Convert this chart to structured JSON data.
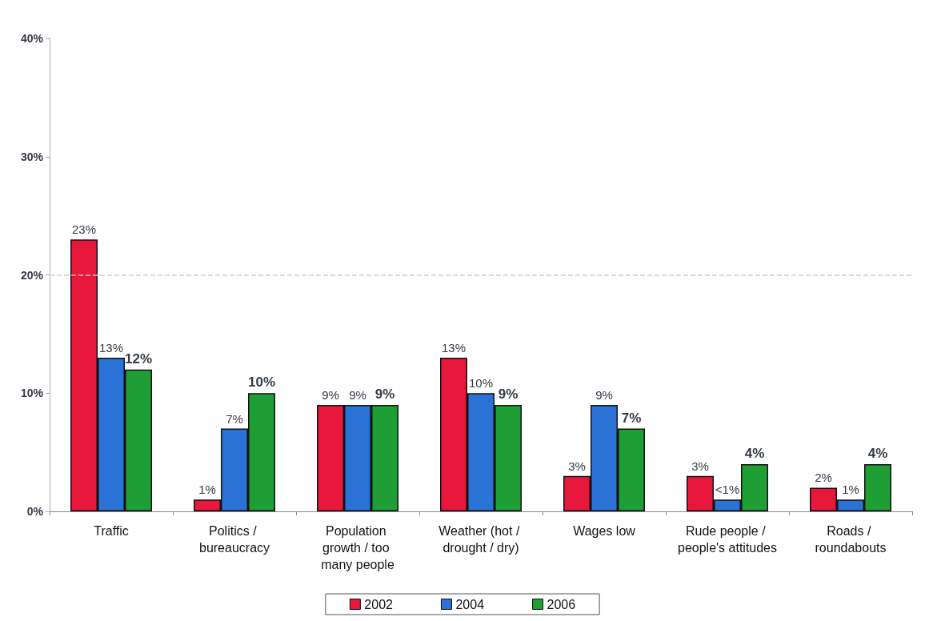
{
  "chart_data": {
    "type": "bar",
    "categories": [
      "Traffic",
      "Politics / bureaucracy",
      "Population growth / too many people",
      "Weather (hot / drought / dry)",
      "Wages low",
      "Rude people / people's attitudes",
      "Roads / roundabouts"
    ],
    "series": [
      {
        "name": "2002",
        "color": "#e8173c",
        "values": [
          23,
          1,
          9,
          13,
          3,
          3,
          2
        ],
        "value_labels": [
          "23%",
          "1%",
          "9%",
          "13%",
          "3%",
          "3%",
          "2%"
        ]
      },
      {
        "name": "2004",
        "color": "#2a72d6",
        "values": [
          13,
          7,
          9,
          10,
          9,
          1,
          1
        ],
        "value_labels": [
          "13%",
          "7%",
          "9%",
          "10%",
          "9%",
          "<1%",
          "1%"
        ]
      },
      {
        "name": "2006",
        "color": "#1f9e35",
        "values": [
          12,
          10,
          9,
          9,
          7,
          4,
          4
        ],
        "value_labels": [
          "12%",
          "10%",
          "9%",
          "9%",
          "7%",
          "4%",
          "4%"
        ]
      }
    ],
    "ylim": [
      0,
      40
    ],
    "yticks": [
      {
        "value": 0,
        "label": "0%"
      },
      {
        "value": 10,
        "label": "10%"
      },
      {
        "value": 20,
        "label": "20%"
      },
      {
        "value": 30,
        "label": "30%"
      },
      {
        "value": 40,
        "label": "40%"
      }
    ],
    "ref_lines": [
      {
        "axis": "y",
        "value": 20,
        "color": "#cccccc",
        "line_style": "dashed"
      }
    ],
    "grid": false,
    "legend": "bottom"
  }
}
